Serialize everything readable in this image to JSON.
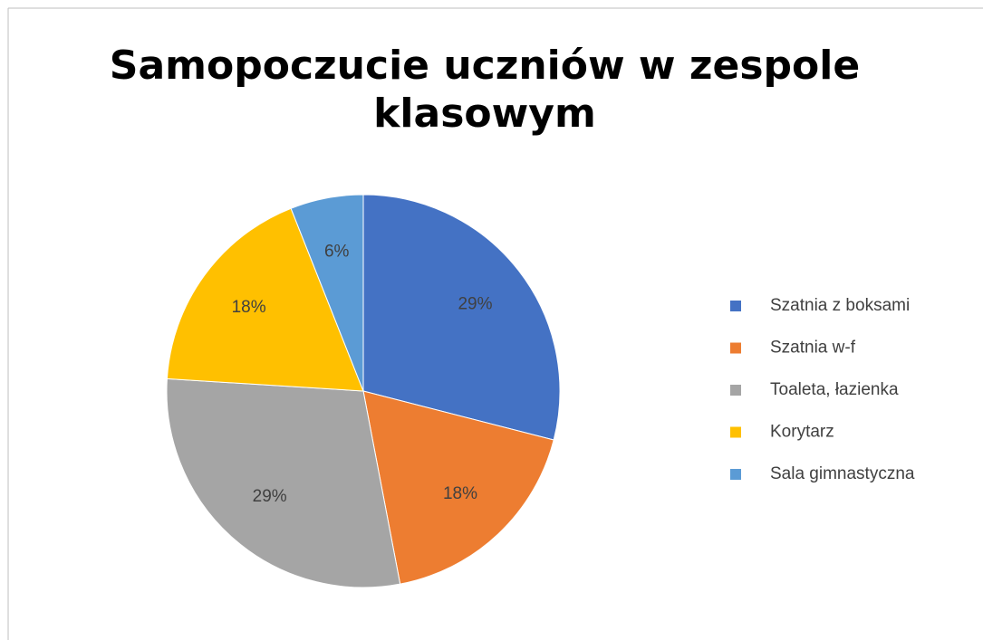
{
  "chart_data": {
    "type": "pie",
    "title": "Samopoczucie uczniów w zespole klasowym",
    "categories": [
      "Szatnia z boksami",
      "Szatnia w-f",
      "Toaleta, łazienka",
      "Korytarz",
      "Sala gimnastyczna"
    ],
    "values": [
      29,
      18,
      29,
      18,
      6
    ],
    "value_labels": [
      "29%",
      "18%",
      "29%",
      "18%",
      "6%"
    ],
    "colors": [
      "#4472c4",
      "#ed7d31",
      "#a5a5a5",
      "#ffc000",
      "#5b9bd5"
    ],
    "legend": "right"
  }
}
